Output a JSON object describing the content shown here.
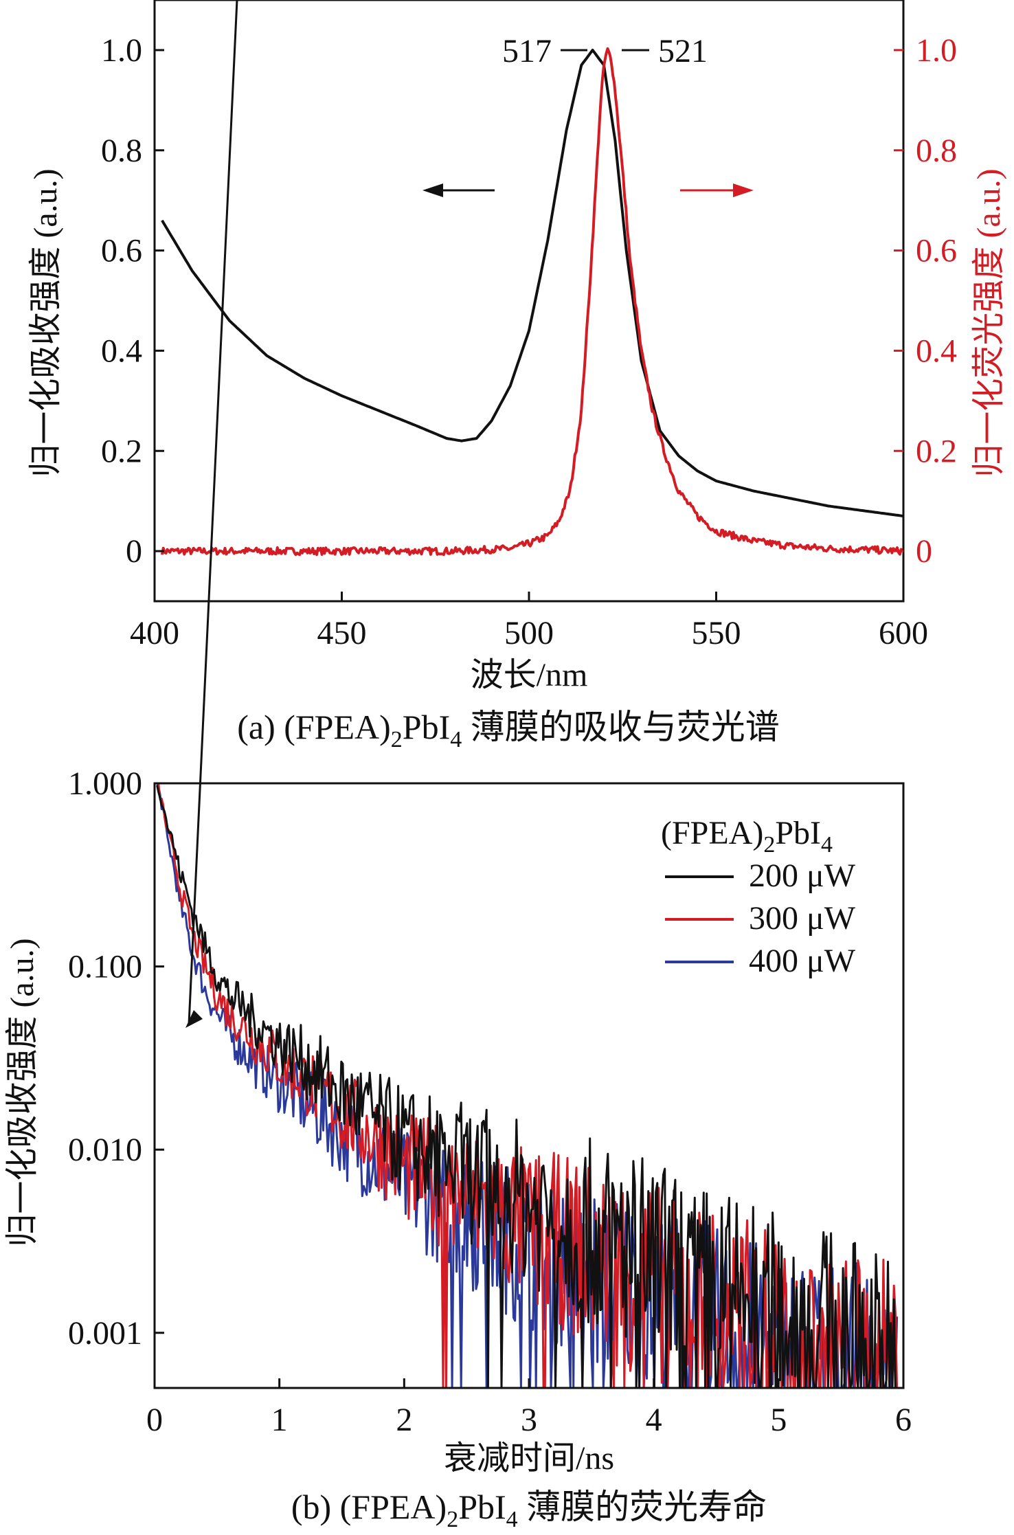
{
  "colors": {
    "black": "#111111",
    "red": "#d41c25",
    "blue": "#2b3a9a",
    "axis_red": "#d41c25"
  },
  "chart_data": [
    {
      "type": "line",
      "panel": "a",
      "caption": {
        "prefix": "(a) (FPEA)",
        "sub": "2",
        "mid": "PbI",
        "sub2": "4",
        "suffix": " 薄膜的吸收与荧光谱"
      },
      "xlabel": "波长/nm",
      "ylabel_left": "归一化吸收强度 (a.u.)",
      "ylabel_right": "归一化荧光强度 (a.u.)",
      "xlim": [
        400,
        600
      ],
      "ylim": [
        -0.1,
        1.1
      ],
      "xticks": [
        400,
        450,
        500,
        550,
        600
      ],
      "yticks": [
        0,
        0.2,
        0.4,
        0.6,
        0.8,
        1.0
      ],
      "yticklabels": [
        "0",
        "0.2",
        "0.4",
        "0.6",
        "0.8",
        "1.0"
      ],
      "annotations": {
        "peak_abs": "517",
        "peak_pl": "521"
      },
      "series": [
        {
          "name": "absorption",
          "axis": "left",
          "color": "#111111",
          "x": [
            402,
            410,
            420,
            430,
            440,
            450,
            460,
            470,
            478,
            482,
            486,
            490,
            495,
            500,
            505,
            510,
            514,
            517,
            520,
            523,
            526,
            530,
            535,
            540,
            545,
            550,
            560,
            570,
            580,
            590,
            600
          ],
          "y": [
            0.66,
            0.56,
            0.46,
            0.39,
            0.345,
            0.31,
            0.28,
            0.25,
            0.225,
            0.22,
            0.225,
            0.26,
            0.33,
            0.44,
            0.62,
            0.84,
            0.97,
            1.0,
            0.97,
            0.82,
            0.6,
            0.38,
            0.24,
            0.19,
            0.16,
            0.14,
            0.12,
            0.105,
            0.09,
            0.08,
            0.07
          ]
        },
        {
          "name": "photoluminescence",
          "axis": "right",
          "color": "#d41c25",
          "x": [
            402,
            420,
            450,
            480,
            495,
            500,
            505,
            508,
            511,
            514,
            516,
            518,
            519,
            520,
            521,
            522,
            523,
            525,
            527,
            530,
            533,
            536,
            540,
            545,
            550,
            560,
            570,
            580,
            590,
            600
          ],
          "y": [
            0.0,
            0.0,
            0.0,
            0.0,
            0.005,
            0.015,
            0.03,
            0.06,
            0.12,
            0.28,
            0.5,
            0.75,
            0.88,
            0.97,
            1.0,
            0.98,
            0.92,
            0.76,
            0.58,
            0.4,
            0.28,
            0.2,
            0.12,
            0.07,
            0.04,
            0.02,
            0.01,
            0.005,
            0.003,
            0.0
          ]
        }
      ]
    },
    {
      "type": "line",
      "panel": "b",
      "caption": {
        "prefix": "(b) (FPEA)",
        "sub": "2",
        "mid": "PbI",
        "sub2": "4",
        "suffix": " 薄膜的荧光寿命"
      },
      "xlabel": "衰减时间/ns",
      "ylabel": "归一化吸收强度 (a.u.)",
      "yscale": "log",
      "xlim": [
        0,
        6
      ],
      "ylim": [
        0.0005,
        1.0
      ],
      "xticks": [
        0,
        1,
        2,
        3,
        4,
        5,
        6
      ],
      "yticks": [
        0.001,
        0.01,
        0.1,
        1.0
      ],
      "yticklabels": [
        "0.001",
        "0.010",
        "0.100",
        "1.000"
      ],
      "legend": {
        "title_prefix": "(FPEA)",
        "title_sub": "2",
        "title_mid": "PbI",
        "title_sub2": "4",
        "position": "top-right"
      },
      "series": [
        {
          "name": "200 μW",
          "color": "#111111",
          "x": [
            0.02,
            0.1,
            0.2,
            0.3,
            0.4,
            0.5,
            0.6,
            0.8,
            1.0,
            1.2,
            1.5,
            1.8,
            2.0,
            2.5,
            3.0,
            3.5,
            4.0,
            4.5,
            5.0,
            5.5,
            6.0
          ],
          "y": [
            1.0,
            0.6,
            0.33,
            0.2,
            0.13,
            0.09,
            0.07,
            0.05,
            0.038,
            0.03,
            0.02,
            0.014,
            0.011,
            0.0075,
            0.005,
            0.0035,
            0.0025,
            0.0018,
            0.0013,
            0.001,
            0.0008
          ]
        },
        {
          "name": "300 μW",
          "color": "#d41c25",
          "x": [
            0.02,
            0.1,
            0.2,
            0.3,
            0.4,
            0.5,
            0.6,
            0.8,
            1.0,
            1.2,
            1.5,
            1.8,
            2.0,
            2.5,
            3.0,
            3.5,
            4.0,
            4.5,
            5.0,
            5.5,
            6.0
          ],
          "y": [
            1.0,
            0.55,
            0.27,
            0.15,
            0.1,
            0.07,
            0.055,
            0.04,
            0.03,
            0.024,
            0.016,
            0.011,
            0.008,
            0.0055,
            0.0037,
            0.0026,
            0.0019,
            0.0014,
            0.001,
            0.0008,
            0.0007
          ]
        },
        {
          "name": "400 μW",
          "color": "#2b3a9a",
          "x": [
            0.02,
            0.1,
            0.2,
            0.3,
            0.4,
            0.5,
            0.6,
            0.8,
            1.0,
            1.2,
            1.5,
            1.8,
            2.0,
            2.5,
            3.0,
            3.5,
            4.0,
            4.5,
            5.0,
            5.5,
            6.0
          ],
          "y": [
            1.0,
            0.5,
            0.22,
            0.12,
            0.075,
            0.055,
            0.042,
            0.03,
            0.023,
            0.018,
            0.012,
            0.0085,
            0.0065,
            0.0042,
            0.0028,
            0.002,
            0.0015,
            0.0011,
            0.0008,
            0.0007,
            0.0006
          ]
        }
      ]
    }
  ]
}
